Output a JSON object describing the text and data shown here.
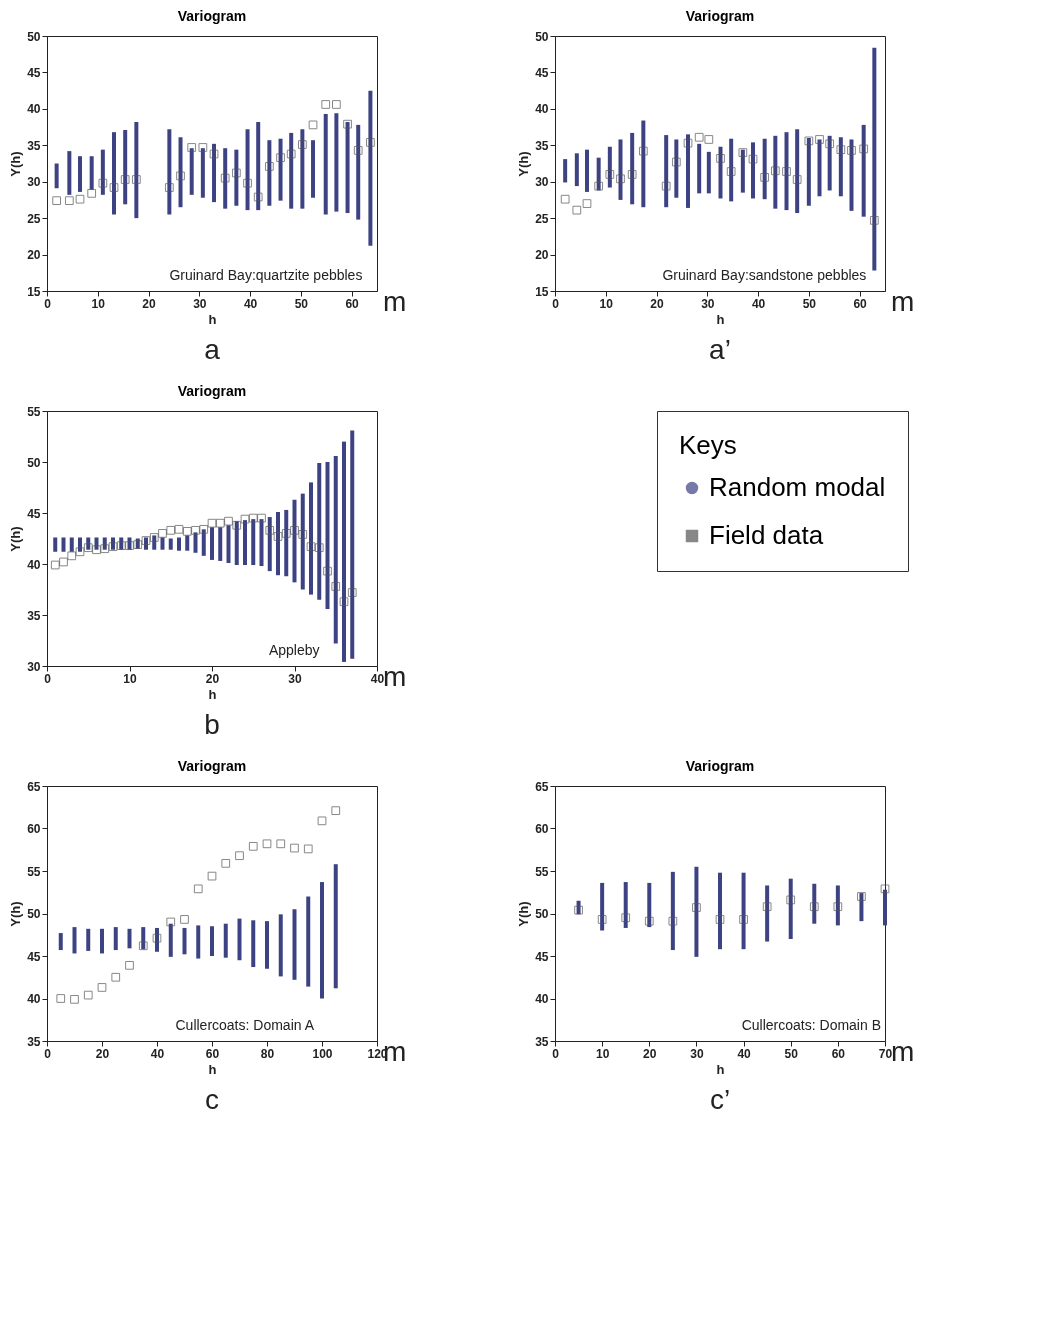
{
  "chart_data": [
    {
      "type": "scatter",
      "title": "Variogram",
      "xlabel": "h",
      "ylabel": "Y(h)",
      "xlim": [
        0,
        65
      ],
      "xticks": [
        0,
        10,
        20,
        30,
        40,
        50,
        60
      ],
      "ylim": [
        15,
        50
      ],
      "yticks": [
        15,
        20,
        25,
        30,
        35,
        40,
        45,
        50
      ],
      "grid": false,
      "annotations": [
        "Gruinard Bay:quartzite pebbles",
        "m",
        "a"
      ],
      "series": [
        {
          "type": "bar",
          "color": "#3d4283",
          "x": [
            1.9,
            4.4,
            6.5,
            8.8,
            11.0,
            13.2,
            15.4,
            17.6,
            24.1,
            26.3,
            28.5,
            30.7,
            32.9,
            35.1,
            37.3,
            39.5,
            41.6,
            43.8,
            46.0,
            48.1,
            50.3,
            52.4,
            54.9,
            57.0,
            59.2,
            61.3,
            63.7
          ],
          "base": [
            29.1,
            28.2,
            28.6,
            28.9,
            28.2,
            25.5,
            26.9,
            25.0,
            25.5,
            26.5,
            28.2,
            27.8,
            27.2,
            26.3,
            26.7,
            26.1,
            26.1,
            26.7,
            27.4,
            26.3,
            26.3,
            27.8,
            25.5,
            25.9,
            25.7,
            24.8,
            21.2
          ],
          "values": [
            3.4,
            6.0,
            4.9,
            4.6,
            6.2,
            11.3,
            10.2,
            13.2,
            11.7,
            9.6,
            6.4,
            6.8,
            8.0,
            8.3,
            7.7,
            11.1,
            12.1,
            9.0,
            8.5,
            10.4,
            10.9,
            7.9,
            13.8,
            13.5,
            12.5,
            13.0,
            21.3
          ]
        },
        {
          "marker": "square",
          "color": "#555555",
          "x": [
            1.9,
            4.4,
            6.5,
            8.8,
            11.0,
            13.2,
            15.4,
            17.6,
            24.1,
            26.3,
            28.5,
            30.7,
            32.9,
            35.1,
            37.3,
            39.5,
            41.6,
            43.8,
            46.0,
            48.1,
            50.3,
            52.4,
            54.9,
            57.0,
            59.2,
            61.3,
            63.7
          ],
          "values": [
            27.4,
            27.4,
            27.6,
            28.4,
            29.8,
            29.2,
            30.3,
            30.3,
            29.2,
            30.8,
            34.7,
            34.7,
            33.8,
            30.5,
            31.2,
            29.8,
            27.9,
            32.1,
            33.3,
            33.8,
            35.1,
            37.8,
            40.6,
            40.6,
            37.9,
            34.3,
            35.4
          ]
        }
      ]
    },
    {
      "type": "scatter",
      "title": "Variogram",
      "xlabel": "h",
      "ylabel": "Y(h)",
      "xlim": [
        0,
        65
      ],
      "xticks": [
        0,
        10,
        20,
        30,
        40,
        50,
        60
      ],
      "ylim": [
        15,
        50
      ],
      "yticks": [
        15,
        20,
        25,
        30,
        35,
        40,
        45,
        50
      ],
      "grid": false,
      "annotations": [
        "Gruinard Bay:sandstone pebbles",
        "m",
        "a’"
      ],
      "series": [
        {
          "type": "bar",
          "color": "#3d4283",
          "x": [
            2.0,
            4.3,
            6.3,
            8.6,
            10.8,
            12.9,
            15.2,
            17.4,
            21.9,
            23.9,
            26.2,
            28.4,
            30.3,
            32.6,
            34.7,
            37.0,
            39.0,
            41.3,
            43.4,
            45.6,
            47.7,
            50.0,
            52.1,
            54.1,
            56.3,
            58.4,
            60.8,
            62.9
          ],
          "base": [
            29.9,
            29.4,
            28.6,
            28.8,
            29.2,
            27.5,
            26.9,
            26.5,
            26.5,
            27.8,
            26.4,
            28.4,
            28.4,
            27.7,
            27.3,
            28.5,
            27.7,
            27.6,
            26.3,
            26.1,
            25.7,
            26.7,
            28.0,
            28.8,
            28.0,
            26.0,
            25.2,
            17.8
          ],
          "values": [
            3.2,
            4.5,
            5.8,
            4.5,
            5.6,
            8.3,
            9.8,
            11.9,
            9.9,
            8.0,
            10.1,
            6.8,
            5.7,
            7.1,
            8.6,
            5.9,
            7.7,
            8.3,
            10.0,
            10.7,
            11.5,
            9.3,
            7.8,
            7.5,
            8.1,
            9.8,
            12.6,
            30.6
          ]
        },
        {
          "marker": "square",
          "color": "#555555",
          "x": [
            2.0,
            4.3,
            6.3,
            8.6,
            10.8,
            12.9,
            15.2,
            17.4,
            21.9,
            23.9,
            26.2,
            28.4,
            30.3,
            32.6,
            34.7,
            37.0,
            39.0,
            41.3,
            43.4,
            45.6,
            47.7,
            50.0,
            52.1,
            54.1,
            56.3,
            58.4,
            60.8,
            62.9
          ],
          "values": [
            27.6,
            26.1,
            27.0,
            29.4,
            31.0,
            30.4,
            31.0,
            34.2,
            29.4,
            32.7,
            35.3,
            36.1,
            35.8,
            33.2,
            31.4,
            34.0,
            33.1,
            30.6,
            31.5,
            31.4,
            30.3,
            35.6,
            35.8,
            35.2,
            34.4,
            34.3,
            34.5,
            24.7
          ]
        }
      ]
    },
    {
      "type": "scatter",
      "title": "Variogram",
      "xlabel": "h",
      "ylabel": "Y(h)",
      "xlim": [
        0,
        40
      ],
      "xticks": [
        0,
        10,
        20,
        30,
        40
      ],
      "ylim": [
        30,
        55
      ],
      "yticks": [
        30,
        35,
        40,
        45,
        50,
        55
      ],
      "grid": false,
      "legend": "right",
      "legend_title": "Keys",
      "annotations": [
        "Appleby",
        "m",
        "b"
      ],
      "series": [
        {
          "type": "bar",
          "name": "Random modal",
          "color": "#3d4283",
          "x": [
            1,
            2,
            3,
            4,
            5,
            6,
            7,
            8,
            9,
            10,
            11,
            12,
            13,
            14,
            15,
            16,
            17,
            18,
            19,
            20,
            21,
            22,
            23,
            24,
            25,
            26,
            27,
            28,
            29,
            30,
            31,
            32,
            33,
            34,
            35,
            36,
            37
          ],
          "base": [
            41.2,
            41.2,
            41.2,
            41.2,
            41.4,
            41.4,
            41.4,
            41.4,
            41.4,
            41.4,
            41.5,
            41.4,
            41.4,
            41.4,
            41.4,
            41.3,
            41.3,
            41.1,
            40.8,
            40.4,
            40.3,
            40.1,
            39.9,
            39.9,
            39.9,
            39.8,
            39.3,
            38.9,
            38.8,
            38.2,
            37.5,
            37.0,
            36.5,
            35.6,
            32.2,
            30.4,
            30.7
          ],
          "values": [
            1.4,
            1.4,
            1.4,
            1.4,
            1.2,
            1.2,
            1.2,
            1.2,
            1.2,
            1.2,
            1.0,
            1.2,
            1.4,
            1.2,
            1.1,
            1.3,
            1.5,
            2.0,
            2.6,
            3.2,
            3.3,
            3.7,
            4.3,
            4.4,
            4.5,
            4.6,
            5.3,
            6.2,
            6.5,
            8.1,
            9.4,
            11.0,
            13.4,
            14.4,
            18.4,
            21.6,
            22.4
          ]
        },
        {
          "name": "Field data",
          "marker": "square",
          "color": "#555555",
          "x": [
            1,
            2,
            3,
            4,
            5,
            6,
            7,
            8,
            9,
            10,
            11,
            12,
            13,
            14,
            15,
            16,
            17,
            18,
            19,
            20,
            21,
            22,
            23,
            24,
            25,
            26,
            27,
            28,
            29,
            30,
            31,
            32,
            33,
            34,
            35,
            36,
            37
          ],
          "values": [
            39.9,
            40.2,
            40.8,
            41.2,
            41.6,
            41.4,
            41.5,
            41.7,
            41.8,
            41.8,
            41.9,
            42.3,
            42.6,
            43.0,
            43.3,
            43.4,
            43.2,
            43.3,
            43.4,
            44.0,
            44.0,
            44.2,
            43.8,
            44.4,
            44.5,
            44.5,
            43.3,
            42.7,
            43.0,
            43.3,
            42.9,
            41.7,
            41.6,
            39.3,
            37.8,
            36.3,
            37.2
          ]
        }
      ]
    },
    {
      "type": "scatter",
      "title": "Variogram",
      "xlabel": "h",
      "ylabel": "Y(h)",
      "xlim": [
        0,
        120
      ],
      "xticks": [
        0,
        20,
        40,
        60,
        80,
        100,
        120
      ],
      "ylim": [
        35,
        65
      ],
      "yticks": [
        35,
        40,
        45,
        50,
        55,
        60,
        65
      ],
      "grid": false,
      "annotations": [
        "Cullercoats: Domain A",
        "m",
        "c"
      ],
      "series": [
        {
          "type": "bar",
          "color": "#3d4283",
          "x": [
            5,
            10,
            15,
            20,
            25,
            30,
            35,
            40,
            45,
            50,
            55,
            60,
            65,
            70,
            75,
            80,
            85,
            90,
            95,
            100,
            105
          ],
          "base": [
            45.7,
            45.3,
            45.6,
            45.3,
            45.7,
            45.9,
            45.8,
            45.5,
            44.9,
            45.2,
            44.7,
            45.0,
            44.8,
            44.5,
            43.7,
            43.5,
            42.6,
            42.2,
            41.4,
            40.0,
            41.2
          ],
          "values": [
            2.0,
            3.1,
            2.6,
            2.9,
            2.7,
            2.3,
            2.6,
            2.8,
            3.9,
            3.1,
            3.9,
            3.5,
            4.0,
            4.9,
            5.5,
            5.6,
            7.3,
            8.3,
            10.6,
            13.7,
            14.6
          ]
        },
        {
          "marker": "square",
          "color": "#555555",
          "x": [
            5,
            10,
            15,
            20,
            25,
            30,
            35,
            40,
            45,
            50,
            55,
            60,
            65,
            70,
            75,
            80,
            85,
            90,
            95,
            100,
            105
          ],
          "values": [
            40.0,
            39.9,
            40.4,
            41.3,
            42.5,
            43.9,
            46.2,
            47.1,
            49.0,
            49.3,
            52.9,
            54.4,
            55.9,
            56.8,
            57.9,
            58.2,
            58.2,
            57.7,
            57.6,
            60.9,
            62.1
          ]
        }
      ]
    },
    {
      "type": "scatter",
      "title": "Variogram",
      "xlabel": "h",
      "ylabel": "Y(h)",
      "xlim": [
        0,
        70
      ],
      "xticks": [
        0,
        10,
        20,
        30,
        40,
        50,
        60,
        70
      ],
      "ylim": [
        35,
        65
      ],
      "yticks": [
        35,
        40,
        45,
        50,
        55,
        60,
        65
      ],
      "grid": false,
      "annotations": [
        "Cullercoats: Domain B",
        "m",
        "c’"
      ],
      "series": [
        {
          "type": "bar",
          "color": "#3d4283",
          "x": [
            5,
            10,
            15,
            20,
            25,
            30,
            35,
            40,
            45,
            50,
            55,
            60,
            65,
            70
          ],
          "base": [
            49.9,
            48.0,
            48.3,
            48.4,
            45.7,
            44.9,
            45.8,
            45.8,
            46.7,
            47.0,
            48.8,
            48.6,
            49.1,
            48.6
          ],
          "values": [
            1.6,
            5.6,
            5.4,
            5.2,
            9.2,
            10.6,
            9.0,
            9.0,
            6.6,
            7.1,
            4.7,
            4.7,
            3.3,
            4.2
          ]
        },
        {
          "marker": "square",
          "color": "#555555",
          "x": [
            5,
            10,
            15,
            20,
            25,
            30,
            35,
            40,
            45,
            50,
            55,
            60,
            65,
            70
          ],
          "values": [
            50.4,
            49.3,
            49.5,
            49.1,
            49.1,
            50.7,
            49.3,
            49.3,
            50.8,
            51.6,
            50.8,
            50.8,
            52.0,
            52.9
          ]
        }
      ]
    }
  ]
}
